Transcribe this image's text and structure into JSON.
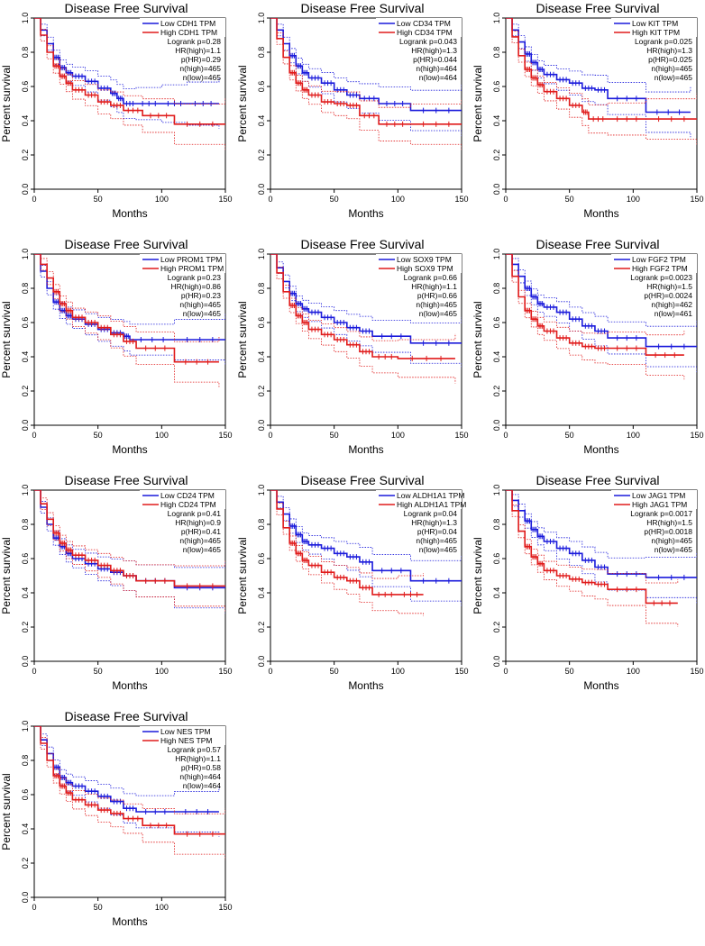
{
  "colors": {
    "low": "#1a1adb",
    "high": "#e01b1b",
    "axis": "#000000"
  },
  "chart_data": [
    {
      "type": "line",
      "title": "Disease Free Survival",
      "xlabel": "Months",
      "ylabel": "Percent survival",
      "xlim": [
        0,
        150
      ],
      "ylim": [
        0,
        1
      ],
      "xticks": [
        "0",
        "50",
        "100",
        "150"
      ],
      "yticks": [
        "0.0",
        "0.2",
        "0.4",
        "0.6",
        "0.8",
        "1.0"
      ],
      "legend": [
        "Low CDH1 TPM",
        "High CDH1 TPM"
      ],
      "stats": [
        "Logrank p=0.28",
        "HR(high)=1.1",
        "p(HR)=0.29",
        "n(high)=465",
        "n(low)=465"
      ],
      "series": [
        {
          "name": "Low CDH1 TPM",
          "x": [
            0,
            5,
            10,
            15,
            20,
            25,
            30,
            40,
            50,
            60,
            65,
            70,
            80,
            100,
            120,
            145
          ],
          "y": [
            1.0,
            0.93,
            0.85,
            0.77,
            0.71,
            0.68,
            0.66,
            0.63,
            0.59,
            0.56,
            0.53,
            0.5,
            0.5,
            0.5,
            0.5,
            0.5
          ]
        },
        {
          "name": "High CDH1 TPM",
          "x": [
            0,
            5,
            10,
            15,
            20,
            25,
            30,
            40,
            50,
            60,
            70,
            85,
            110,
            150
          ],
          "y": [
            1.0,
            0.9,
            0.8,
            0.72,
            0.66,
            0.62,
            0.58,
            0.55,
            0.51,
            0.49,
            0.46,
            0.43,
            0.38,
            0.38
          ]
        }
      ]
    },
    {
      "type": "line",
      "title": "Disease Free Survival",
      "xlabel": "Months",
      "ylabel": "Percent survival",
      "xlim": [
        0,
        150
      ],
      "ylim": [
        0,
        1
      ],
      "xticks": [
        "0",
        "50",
        "100",
        "150"
      ],
      "yticks": [
        "0.0",
        "0.2",
        "0.4",
        "0.6",
        "0.8",
        "1.0"
      ],
      "legend": [
        "Low CD34 TPM",
        "High CD34 TPM"
      ],
      "stats": [
        "Logrank p=0.043",
        "HR(high)=1.3",
        "p(HR)=0.044",
        "n(high)=464",
        "n(low)=464"
      ],
      "series": [
        {
          "name": "Low CD34 TPM",
          "x": [
            0,
            5,
            10,
            15,
            20,
            25,
            30,
            40,
            50,
            60,
            70,
            85,
            110,
            150
          ],
          "y": [
            1.0,
            0.93,
            0.85,
            0.78,
            0.72,
            0.68,
            0.65,
            0.62,
            0.58,
            0.55,
            0.53,
            0.5,
            0.46,
            0.46
          ]
        },
        {
          "name": "High CD34 TPM",
          "x": [
            0,
            5,
            10,
            15,
            20,
            25,
            30,
            40,
            50,
            60,
            70,
            85,
            110,
            150
          ],
          "y": [
            1.0,
            0.88,
            0.77,
            0.68,
            0.62,
            0.58,
            0.55,
            0.51,
            0.5,
            0.49,
            0.43,
            0.38,
            0.38,
            0.38
          ]
        }
      ]
    },
    {
      "type": "line",
      "title": "Disease Free Survival",
      "xlabel": "Months",
      "ylabel": "Percent survival",
      "xlim": [
        0,
        150
      ],
      "ylim": [
        0,
        1
      ],
      "xticks": [
        "0",
        "50",
        "100",
        "150"
      ],
      "yticks": [
        "0.0",
        "0.2",
        "0.4",
        "0.6",
        "0.8",
        "1.0"
      ],
      "legend": [
        "Low KIT TPM",
        "High KIT TPM"
      ],
      "stats": [
        "Logrank p=0.025",
        "HR(high)=1.3",
        "p(HR)=0.025",
        "n(high)=465",
        "n(low)=465"
      ],
      "series": [
        {
          "name": "Low KIT TPM",
          "x": [
            0,
            5,
            10,
            15,
            20,
            25,
            30,
            40,
            50,
            60,
            70,
            80,
            110,
            145
          ],
          "y": [
            1.0,
            0.93,
            0.86,
            0.79,
            0.74,
            0.7,
            0.67,
            0.64,
            0.62,
            0.59,
            0.58,
            0.53,
            0.45,
            0.45
          ]
        },
        {
          "name": "High KIT TPM",
          "x": [
            0,
            5,
            10,
            15,
            20,
            25,
            30,
            40,
            50,
            60,
            65,
            80,
            110,
            150
          ],
          "y": [
            1.0,
            0.89,
            0.78,
            0.7,
            0.65,
            0.61,
            0.57,
            0.53,
            0.49,
            0.45,
            0.41,
            0.41,
            0.41,
            0.41
          ]
        }
      ]
    },
    {
      "type": "line",
      "title": "Disease Free Survival",
      "xlabel": "Months",
      "ylabel": "Percent survival",
      "xlim": [
        0,
        150
      ],
      "ylim": [
        0,
        1
      ],
      "xticks": [
        "0",
        "50",
        "100",
        "150"
      ],
      "yticks": [
        "0.0",
        "0.2",
        "0.4",
        "0.6",
        "0.8",
        "1.0"
      ],
      "legend": [
        "Low PROM1 TPM",
        "High PROM1 TPM"
      ],
      "stats": [
        "Logrank p=0.23",
        "HR(high)=0.86",
        "p(HR)=0.23",
        "n(high)=465",
        "n(low)=465"
      ],
      "series": [
        {
          "name": "Low PROM1 TPM",
          "x": [
            0,
            5,
            10,
            15,
            20,
            25,
            30,
            40,
            50,
            60,
            70,
            75,
            110,
            150
          ],
          "y": [
            1.0,
            0.9,
            0.8,
            0.72,
            0.67,
            0.64,
            0.62,
            0.59,
            0.56,
            0.54,
            0.52,
            0.5,
            0.5,
            0.5
          ]
        },
        {
          "name": "High PROM1 TPM",
          "x": [
            0,
            5,
            10,
            15,
            20,
            25,
            30,
            40,
            50,
            60,
            70,
            80,
            110,
            145
          ],
          "y": [
            1.0,
            0.94,
            0.86,
            0.78,
            0.71,
            0.67,
            0.63,
            0.6,
            0.57,
            0.53,
            0.49,
            0.45,
            0.37,
            0.37
          ]
        }
      ]
    },
    {
      "type": "line",
      "title": "Disease Free Survival",
      "xlabel": "Months",
      "ylabel": "Percent survival",
      "xlim": [
        0,
        150
      ],
      "ylim": [
        0,
        1
      ],
      "xticks": [
        "0",
        "50",
        "100",
        "150"
      ],
      "yticks": [
        "0.0",
        "0.2",
        "0.4",
        "0.6",
        "0.8",
        "1.0"
      ],
      "legend": [
        "Low SOX9 TPM",
        "High SOX9 TPM"
      ],
      "stats": [
        "Logrank p=0.66",
        "HR(high)=1.1",
        "p(HR)=0.66",
        "n(high)=465",
        "n(low)=465"
      ],
      "series": [
        {
          "name": "Low SOX9 TPM",
          "x": [
            0,
            5,
            10,
            15,
            20,
            25,
            30,
            40,
            50,
            60,
            70,
            80,
            110,
            150
          ],
          "y": [
            1.0,
            0.92,
            0.84,
            0.77,
            0.71,
            0.68,
            0.66,
            0.63,
            0.6,
            0.57,
            0.55,
            0.52,
            0.48,
            0.48
          ]
        },
        {
          "name": "High SOX9 TPM",
          "x": [
            0,
            5,
            10,
            15,
            20,
            25,
            30,
            40,
            50,
            60,
            70,
            80,
            100,
            145
          ],
          "y": [
            1.0,
            0.89,
            0.78,
            0.7,
            0.64,
            0.6,
            0.56,
            0.53,
            0.5,
            0.47,
            0.43,
            0.4,
            0.39,
            0.39
          ]
        }
      ]
    },
    {
      "type": "line",
      "title": "Disease Free Survival",
      "xlabel": "Months",
      "ylabel": "Percent survival",
      "xlim": [
        0,
        150
      ],
      "ylim": [
        0,
        1
      ],
      "xticks": [
        "0",
        "50",
        "100",
        "150"
      ],
      "yticks": [
        "0.0",
        "0.2",
        "0.4",
        "0.6",
        "0.8",
        "1.0"
      ],
      "legend": [
        "Low FGF2 TPM",
        "High FGF2 TPM"
      ],
      "stats": [
        "Logrank p=0.0023",
        "HR(high)=1.5",
        "p(HR)=0.0024",
        "n(high)=462",
        "n(low)=461"
      ],
      "series": [
        {
          "name": "Low FGF2 TPM",
          "x": [
            0,
            5,
            10,
            15,
            20,
            25,
            30,
            40,
            50,
            60,
            70,
            80,
            110,
            150
          ],
          "y": [
            1.0,
            0.94,
            0.87,
            0.8,
            0.75,
            0.71,
            0.69,
            0.66,
            0.62,
            0.58,
            0.55,
            0.51,
            0.46,
            0.46
          ]
        },
        {
          "name": "High FGF2 TPM",
          "x": [
            0,
            5,
            10,
            15,
            20,
            25,
            30,
            40,
            50,
            60,
            70,
            80,
            110,
            140
          ],
          "y": [
            1.0,
            0.87,
            0.75,
            0.67,
            0.62,
            0.58,
            0.55,
            0.51,
            0.48,
            0.46,
            0.45,
            0.45,
            0.41,
            0.41
          ]
        }
      ]
    },
    {
      "type": "line",
      "title": "Disease Free Survival",
      "xlabel": "Months",
      "ylabel": "Percent survival",
      "xlim": [
        0,
        150
      ],
      "ylim": [
        0,
        1
      ],
      "xticks": [
        "0",
        "50",
        "100",
        "150"
      ],
      "yticks": [
        "0.0",
        "0.2",
        "0.4",
        "0.6",
        "0.8",
        "1.0"
      ],
      "legend": [
        "Low CD24 TPM",
        "High CD24 TPM"
      ],
      "stats": [
        "Logrank p=0.41",
        "HR(high)=0.9",
        "p(HR)=0.41",
        "n(high)=465",
        "n(low)=465"
      ],
      "series": [
        {
          "name": "Low CD24 TPM",
          "x": [
            0,
            5,
            10,
            15,
            20,
            25,
            30,
            40,
            50,
            60,
            70,
            80,
            110,
            150
          ],
          "y": [
            1.0,
            0.9,
            0.8,
            0.72,
            0.67,
            0.63,
            0.6,
            0.57,
            0.54,
            0.52,
            0.5,
            0.47,
            0.43,
            0.43
          ]
        },
        {
          "name": "High CD24 TPM",
          "x": [
            0,
            5,
            10,
            15,
            20,
            25,
            30,
            40,
            50,
            60,
            70,
            80,
            110,
            150
          ],
          "y": [
            1.0,
            0.92,
            0.83,
            0.75,
            0.69,
            0.65,
            0.62,
            0.59,
            0.56,
            0.53,
            0.5,
            0.47,
            0.44,
            0.44
          ]
        }
      ]
    },
    {
      "type": "line",
      "title": "Disease Free Survival",
      "xlabel": "Months",
      "ylabel": "Percent survival",
      "xlim": [
        0,
        150
      ],
      "ylim": [
        0,
        1
      ],
      "xticks": [
        "0",
        "50",
        "100",
        "150"
      ],
      "yticks": [
        "0.0",
        "0.2",
        "0.4",
        "0.6",
        "0.8",
        "1.0"
      ],
      "legend": [
        "Low ALDH1A1 TPM",
        "High ALDH1A1 TPM"
      ],
      "stats": [
        "Logrank p=0.04",
        "HR(high)=1.3",
        "p(HR)=0.04",
        "n(high)=465",
        "n(low)=465"
      ],
      "series": [
        {
          "name": "Low ALDH1A1 TPM",
          "x": [
            0,
            5,
            10,
            15,
            20,
            25,
            30,
            40,
            50,
            60,
            70,
            80,
            110,
            150
          ],
          "y": [
            1.0,
            0.93,
            0.86,
            0.79,
            0.74,
            0.7,
            0.68,
            0.66,
            0.63,
            0.61,
            0.58,
            0.53,
            0.47,
            0.47
          ]
        },
        {
          "name": "High ALDH1A1 TPM",
          "x": [
            0,
            5,
            10,
            15,
            20,
            25,
            30,
            40,
            50,
            60,
            70,
            80,
            100,
            120
          ],
          "y": [
            1.0,
            0.89,
            0.78,
            0.69,
            0.63,
            0.59,
            0.56,
            0.52,
            0.49,
            0.47,
            0.43,
            0.39,
            0.39,
            0.39
          ]
        }
      ]
    },
    {
      "type": "line",
      "title": "Disease Free Survival",
      "xlabel": "Months",
      "ylabel": "Percent survival",
      "xlim": [
        0,
        150
      ],
      "ylim": [
        0,
        1
      ],
      "xticks": [
        "0",
        "50",
        "100",
        "150"
      ],
      "yticks": [
        "0.0",
        "0.2",
        "0.4",
        "0.6",
        "0.8",
        "1.0"
      ],
      "legend": [
        "Low JAG1 TPM",
        "High JAG1 TPM"
      ],
      "stats": [
        "Logrank p=0.0017",
        "HR(high)=1.5",
        "p(HR)=0.0018",
        "n(high)=465",
        "n(low)=465"
      ],
      "series": [
        {
          "name": "Low JAG1 TPM",
          "x": [
            0,
            5,
            10,
            15,
            20,
            25,
            30,
            40,
            50,
            60,
            70,
            80,
            110,
            150
          ],
          "y": [
            1.0,
            0.94,
            0.88,
            0.82,
            0.77,
            0.73,
            0.7,
            0.66,
            0.63,
            0.59,
            0.55,
            0.51,
            0.49,
            0.49
          ]
        },
        {
          "name": "High JAG1 TPM",
          "x": [
            0,
            5,
            10,
            15,
            20,
            25,
            30,
            40,
            50,
            60,
            70,
            80,
            110,
            135
          ],
          "y": [
            1.0,
            0.88,
            0.76,
            0.67,
            0.61,
            0.57,
            0.53,
            0.5,
            0.48,
            0.46,
            0.45,
            0.42,
            0.34,
            0.34
          ]
        }
      ]
    },
    {
      "type": "line",
      "title": "Disease Free Survival",
      "xlabel": "Months",
      "ylabel": "Percent survival",
      "xlim": [
        0,
        150
      ],
      "ylim": [
        0,
        1
      ],
      "xticks": [
        "0",
        "50",
        "100",
        "150"
      ],
      "yticks": [
        "0.0",
        "0.2",
        "0.4",
        "0.6",
        "0.8",
        "1.0"
      ],
      "legend": [
        "Low NES TPM",
        "High NES TPM"
      ],
      "stats": [
        "Logrank p=0.57",
        "HR(high)=1.1",
        "p(HR)=0.58",
        "n(high)=464",
        "n(low)=464"
      ],
      "series": [
        {
          "name": "Low NES TPM",
          "x": [
            0,
            5,
            10,
            15,
            20,
            25,
            30,
            40,
            50,
            60,
            70,
            80,
            110,
            145
          ],
          "y": [
            1.0,
            0.92,
            0.84,
            0.76,
            0.7,
            0.67,
            0.65,
            0.62,
            0.59,
            0.56,
            0.52,
            0.5,
            0.5,
            0.5
          ]
        },
        {
          "name": "High NES TPM",
          "x": [
            0,
            5,
            10,
            15,
            20,
            25,
            30,
            40,
            50,
            60,
            70,
            85,
            110,
            150
          ],
          "y": [
            1.0,
            0.9,
            0.8,
            0.71,
            0.65,
            0.61,
            0.57,
            0.54,
            0.51,
            0.49,
            0.46,
            0.42,
            0.37,
            0.37
          ]
        }
      ]
    }
  ]
}
